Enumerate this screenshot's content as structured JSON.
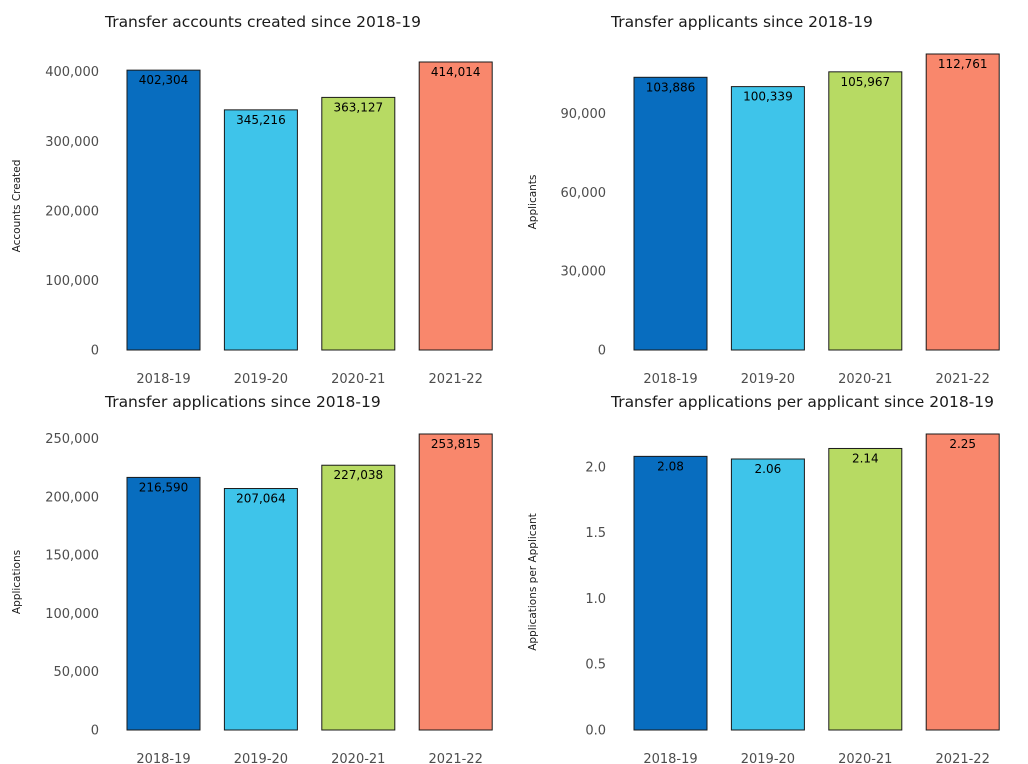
{
  "chart_data": [
    {
      "type": "bar",
      "title": "Transfer accounts created since 2018-19",
      "ylabel": "Accounts Created",
      "xlabel": "",
      "categories": [
        "2018-19",
        "2019-20",
        "2020-21",
        "2021-22"
      ],
      "values": [
        402304,
        345216,
        363127,
        414014
      ],
      "data_labels": [
        "402,304",
        "345,216",
        "363,127",
        "414,014"
      ],
      "yticks": [
        0,
        100000,
        200000,
        300000,
        400000
      ],
      "ytick_labels": [
        "0",
        "100,000",
        "200,000",
        "300,000",
        "400,000"
      ],
      "ylim": [
        0,
        414014
      ],
      "grid": false
    },
    {
      "type": "bar",
      "title": "Transfer applicants since 2018-19",
      "ylabel": "Applicants",
      "xlabel": "",
      "categories": [
        "2018-19",
        "2019-20",
        "2020-21",
        "2021-22"
      ],
      "values": [
        103886,
        100339,
        105967,
        112761
      ],
      "data_labels": [
        "103,886",
        "100,339",
        "105,967",
        "112,761"
      ],
      "yticks": [
        0,
        30000,
        60000,
        90000
      ],
      "ytick_labels": [
        "0",
        "30,000",
        "60,000",
        "90,000"
      ],
      "ylim": [
        0,
        112761
      ],
      "grid": false
    },
    {
      "type": "bar",
      "title": "Transfer applications since 2018-19",
      "ylabel": "Applications",
      "xlabel": "",
      "categories": [
        "2018-19",
        "2019-20",
        "2020-21",
        "2021-22"
      ],
      "values": [
        216590,
        207064,
        227038,
        253815
      ],
      "data_labels": [
        "216,590",
        "207,064",
        "227,038",
        "253,815"
      ],
      "yticks": [
        0,
        50000,
        100000,
        150000,
        200000,
        250000
      ],
      "ytick_labels": [
        "0",
        "50,000",
        "100,000",
        "150,000",
        "200,000",
        "250,000"
      ],
      "ylim": [
        0,
        253815
      ],
      "grid": false
    },
    {
      "type": "bar",
      "title": "Transfer applications per applicant since 2018-19",
      "ylabel": "Applications per Applicant",
      "xlabel": "",
      "categories": [
        "2018-19",
        "2019-20",
        "2020-21",
        "2021-22"
      ],
      "values": [
        2.08,
        2.06,
        2.14,
        2.25
      ],
      "data_labels": [
        "2.08",
        "2.06",
        "2.14",
        "2.25"
      ],
      "yticks": [
        0,
        0.5,
        1,
        1.5,
        2
      ],
      "ytick_labels": [
        "0.0",
        "0.5",
        "1.0",
        "1.5",
        "2.0"
      ],
      "ylim": [
        0,
        2.25
      ],
      "grid": false
    }
  ],
  "colors": {
    "bars": [
      "#086DBF",
      "#3EC4EA",
      "#B7DA63",
      "#F9876C"
    ],
    "outline": "#1a1a1a"
  }
}
